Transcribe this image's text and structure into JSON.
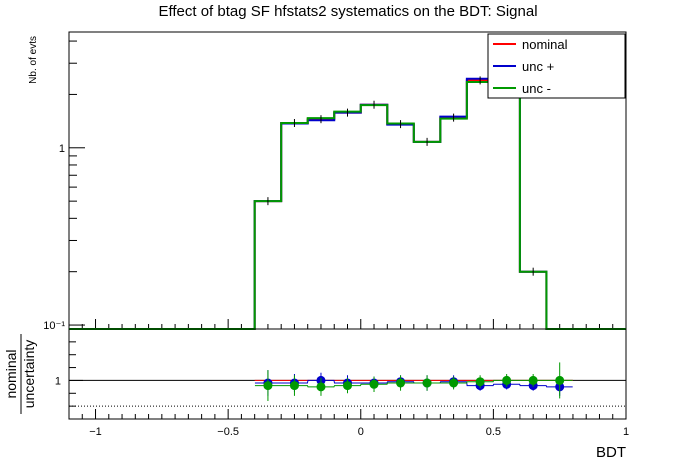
{
  "chart_data": [
    {
      "type": "step-histogram",
      "title": "Effect of btag SF hfstats2 systematics on the BDT: Signal",
      "ylabel": "Nb. of evts",
      "y_scale": "log",
      "ylim": [
        0.095,
        4.5
      ],
      "xlim": [
        -1.1,
        1.0
      ],
      "y_tick_labels": [
        "10⁻¹",
        "1"
      ],
      "bin_edges": [
        -1.1,
        -1.0,
        -0.9,
        -0.8,
        -0.7,
        -0.6,
        -0.5,
        -0.4,
        -0.3,
        -0.2,
        -0.1,
        0.0,
        0.1,
        0.2,
        0.3,
        0.4,
        0.5,
        0.6,
        0.7,
        0.8,
        0.9,
        1.0
      ],
      "series": [
        {
          "name": "nominal",
          "color": "#ff0000",
          "values": [
            0.093,
            0.093,
            0.093,
            0.093,
            0.093,
            0.093,
            0.093,
            0.5,
            1.38,
            1.45,
            1.58,
            1.75,
            1.36,
            1.08,
            1.48,
            2.4,
            2.72,
            0.2,
            0.093,
            0.093,
            0.093
          ]
        },
        {
          "name": "unc +",
          "color": "#0000cc",
          "values": [
            0.093,
            0.093,
            0.093,
            0.093,
            0.093,
            0.093,
            0.093,
            0.5,
            1.37,
            1.43,
            1.58,
            1.75,
            1.35,
            1.08,
            1.5,
            2.45,
            2.85,
            0.2,
            0.093,
            0.093,
            0.093
          ]
        },
        {
          "name": "unc -",
          "color": "#009900",
          "values": [
            0.093,
            0.093,
            0.093,
            0.093,
            0.093,
            0.093,
            0.093,
            0.5,
            1.38,
            1.47,
            1.6,
            1.74,
            1.37,
            1.08,
            1.46,
            2.35,
            2.65,
            0.2,
            0.093,
            0.093,
            0.093
          ]
        }
      ],
      "legend": [
        "nominal",
        "unc +",
        "unc -"
      ],
      "legend_position": "top-right"
    },
    {
      "type": "scatter",
      "xlabel": "BDT",
      "ylabel_top": "nominal",
      "ylabel_bottom": "uncertainty",
      "xlim": [
        -1.1,
        1.0
      ],
      "ylim": [
        0.7,
        1.4
      ],
      "x_ticks": [
        -1,
        -0.5,
        0,
        0.5,
        1
      ],
      "x_tick_labels": [
        "−1",
        "−0.5",
        "0",
        "0.5",
        "1"
      ],
      "y_ticks": [
        1
      ],
      "y_tick_labels": [
        "1"
      ],
      "reference_lines": [
        1.0,
        0.8
      ],
      "x": [
        -0.35,
        -0.25,
        -0.15,
        -0.05,
        0.05,
        0.15,
        0.25,
        0.35,
        0.45,
        0.55,
        0.65,
        0.75
      ],
      "series": [
        {
          "name": "unc +",
          "color": "#0000cc",
          "values": [
            0.98,
            0.98,
            1.0,
            0.98,
            0.98,
            0.99,
            0.98,
            0.99,
            0.96,
            0.97,
            0.96,
            0.95
          ],
          "errors": [
            0.1,
            0.07,
            0.06,
            0.06,
            0.05,
            0.05,
            0.06,
            0.05,
            0.04,
            0.04,
            0.04,
            0.07
          ]
        },
        {
          "name": "unc -",
          "color": "#009900",
          "values": [
            0.96,
            0.96,
            0.95,
            0.96,
            0.97,
            0.98,
            0.98,
            0.98,
            0.99,
            1.0,
            1.0,
            1.0
          ],
          "errors": [
            0.12,
            0.08,
            0.07,
            0.06,
            0.06,
            0.06,
            0.06,
            0.05,
            0.05,
            0.05,
            0.05,
            0.14
          ]
        }
      ]
    }
  ]
}
